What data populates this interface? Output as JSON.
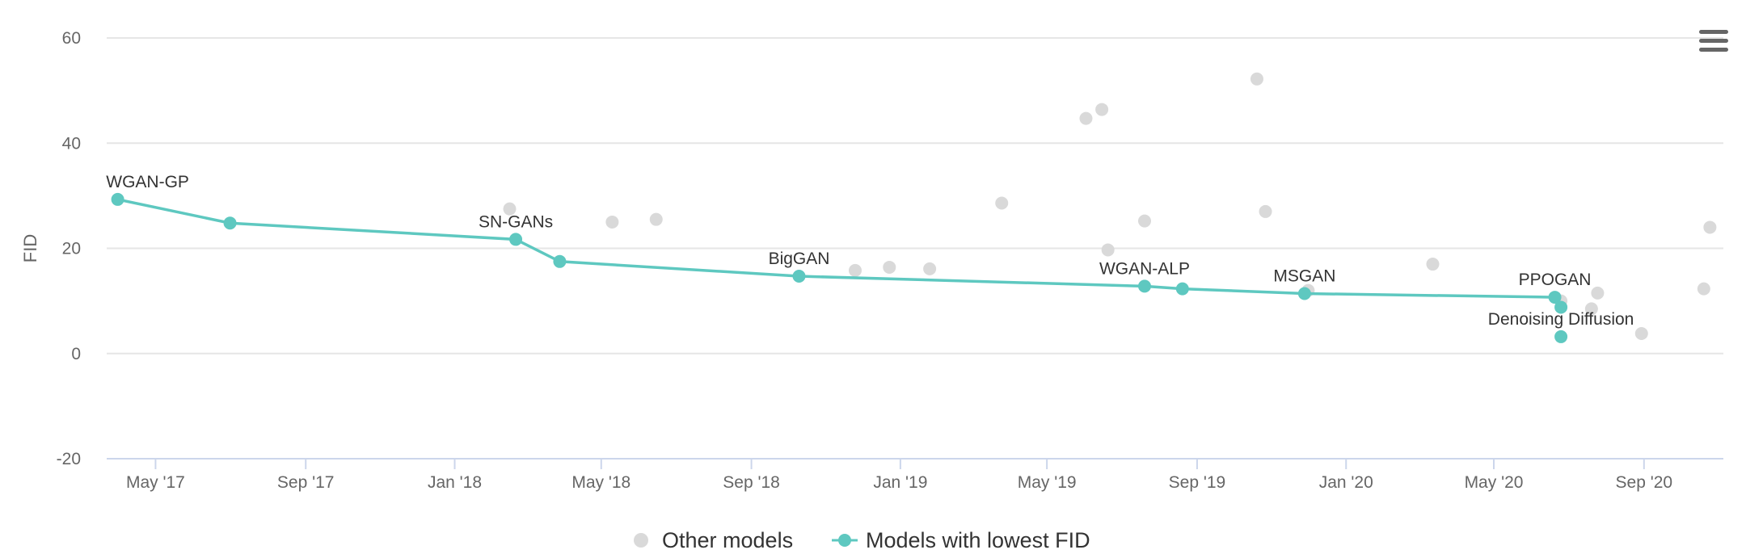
{
  "chart_data": {
    "type": "scatter",
    "ylabel": "FID",
    "ylim": [
      -20,
      60
    ],
    "yticks": [
      -20,
      0,
      20,
      40,
      60
    ],
    "xlim": [
      "2017-03-22",
      "2020-11-05"
    ],
    "xticks": [
      {
        "date": "2017-05-01",
        "label": "May '17"
      },
      {
        "date": "2017-09-01",
        "label": "Sep '17"
      },
      {
        "date": "2018-01-01",
        "label": "Jan '18"
      },
      {
        "date": "2018-05-01",
        "label": "May '18"
      },
      {
        "date": "2018-09-01",
        "label": "Sep '18"
      },
      {
        "date": "2019-01-01",
        "label": "Jan '19"
      },
      {
        "date": "2019-05-01",
        "label": "May '19"
      },
      {
        "date": "2019-09-01",
        "label": "Sep '19"
      },
      {
        "date": "2020-01-01",
        "label": "Jan '20"
      },
      {
        "date": "2020-05-01",
        "label": "May '20"
      },
      {
        "date": "2020-09-01",
        "label": "Sep '20"
      }
    ],
    "series": [
      {
        "name": "Other models",
        "color": "#d9d9d9",
        "points": [
          {
            "x": "2018-02-15",
            "y": 27.5
          },
          {
            "x": "2018-05-10",
            "y": 25
          },
          {
            "x": "2018-06-15",
            "y": 25.5
          },
          {
            "x": "2018-11-25",
            "y": 15.8
          },
          {
            "x": "2018-12-23",
            "y": 16.4
          },
          {
            "x": "2019-01-25",
            "y": 16.1
          },
          {
            "x": "2019-03-25",
            "y": 28.6
          },
          {
            "x": "2019-06-02",
            "y": 44.7
          },
          {
            "x": "2019-06-15",
            "y": 46.4
          },
          {
            "x": "2019-06-20",
            "y": 19.7
          },
          {
            "x": "2019-07-20",
            "y": 25.2
          },
          {
            "x": "2019-10-20",
            "y": 52.2
          },
          {
            "x": "2019-10-27",
            "y": 27
          },
          {
            "x": "2019-12-01",
            "y": 12
          },
          {
            "x": "2020-03-12",
            "y": 17
          },
          {
            "x": "2020-06-25",
            "y": 10
          },
          {
            "x": "2020-07-20",
            "y": 8.5
          },
          {
            "x": "2020-07-25",
            "y": 11.5
          },
          {
            "x": "2020-08-30",
            "y": 3.8
          },
          {
            "x": "2020-10-20",
            "y": 12.3
          },
          {
            "x": "2020-10-25",
            "y": 24
          }
        ]
      },
      {
        "name": "Models with lowest FID",
        "color": "#5ec8c0",
        "points": [
          {
            "x": "2017-03-31",
            "y": 29.3
          },
          {
            "x": "2017-07-01",
            "y": 24.8
          },
          {
            "x": "2018-02-20",
            "y": 21.7
          },
          {
            "x": "2018-03-28",
            "y": 17.5
          },
          {
            "x": "2018-10-10",
            "y": 14.7
          },
          {
            "x": "2019-07-20",
            "y": 12.8
          },
          {
            "x": "2019-08-20",
            "y": 12.3
          },
          {
            "x": "2019-11-28",
            "y": 11.4
          },
          {
            "x": "2020-06-20",
            "y": 10.7
          }
        ],
        "extra_points": [
          {
            "x": "2020-06-25",
            "y": 8.8
          },
          {
            "x": "2020-06-25",
            "y": 3.2
          }
        ]
      }
    ],
    "annotations": [
      {
        "text": "WGAN-GP",
        "x": "2017-03-31",
        "y": 29.3
      },
      {
        "text": "SN-GANs",
        "x": "2018-02-20",
        "y": 21.7
      },
      {
        "text": "BigGAN",
        "x": "2018-10-10",
        "y": 14.7
      },
      {
        "text": "WGAN-ALP",
        "x": "2019-07-20",
        "y": 12.8
      },
      {
        "text": "MSGAN",
        "x": "2019-11-28",
        "y": 11.4
      },
      {
        "text": "PPOGAN",
        "x": "2020-06-20",
        "y": 10.7
      },
      {
        "text": "Denoising Diffusion",
        "x": "2020-06-25",
        "y": 3.2
      }
    ],
    "legend_position": "bottom-center"
  },
  "menu": {
    "icon": "hamburger-menu-icon"
  }
}
